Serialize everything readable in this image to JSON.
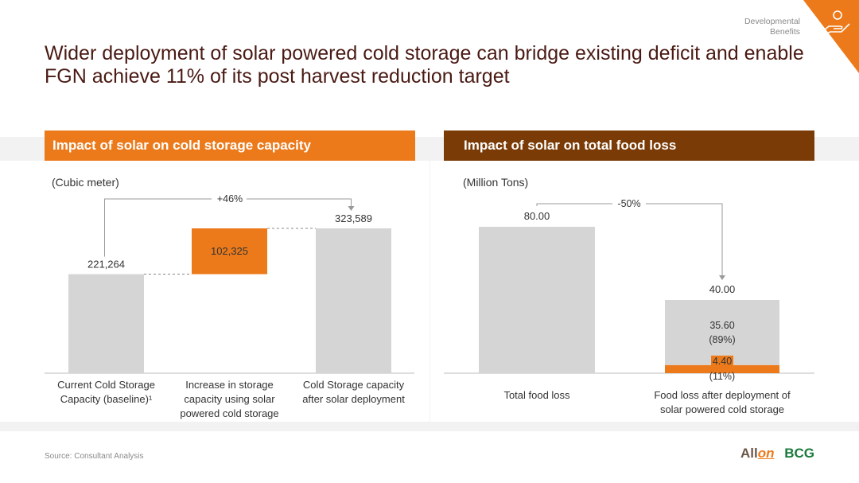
{
  "header": {
    "corner_line1": "Developmental",
    "corner_line2": "Benefits",
    "title": "Wider deployment of solar powered cold storage can bridge existing deficit and enable FGN achieve 11% of its post harvest reduction target"
  },
  "colors": {
    "accent_orange": "#ec7a1b",
    "dark_brown": "#7a3b06",
    "bar_gray": "#d5d5d5",
    "title_color": "#4a1a14"
  },
  "icons": [
    "hand-coin-icon"
  ],
  "footer": {
    "source": "Source: Consultant Analysis",
    "logo_allon_a": "All",
    "logo_allon_b": "on",
    "logo_bcg": "BCG"
  },
  "chart_data": [
    {
      "type": "bar",
      "subtype": "waterfall",
      "title": "Impact of solar on cold storage capacity",
      "unit_label": "(Cubic meter)",
      "categories": [
        [
          "Current Cold Storage",
          "Capacity (baseline)¹"
        ],
        [
          "Increase in storage",
          "capacity using solar",
          "powered cold storage"
        ],
        [
          "Cold Storage capacity",
          "after solar deployment"
        ]
      ],
      "values": [
        221264,
        102325,
        323589
      ],
      "value_labels": [
        "221,264",
        "102,325",
        "323,589"
      ],
      "bar_roles": [
        "total",
        "increase",
        "total"
      ],
      "annotation": "+46%",
      "ylim": [
        0,
        323589
      ]
    },
    {
      "type": "bar",
      "subtype": "stacked",
      "title": "Impact of solar on total food loss",
      "unit_label": "(Million Tons)",
      "categories": [
        [
          "Total food loss"
        ],
        [
          "Food loss after deployment of",
          "solar powered cold storage"
        ]
      ],
      "totals": [
        80.0,
        40.0
      ],
      "total_labels": [
        "80.00",
        "40.00"
      ],
      "segments": {
        "main": [
          80.0,
          35.6
        ],
        "solar": [
          0,
          4.4
        ]
      },
      "segment_labels": {
        "main": [
          "",
          "35.60"
        ],
        "main_pct": [
          "",
          "(89%)"
        ],
        "solar": [
          "",
          "4.40"
        ],
        "solar_pct": [
          "",
          "(11%)"
        ]
      },
      "annotation": "-50%",
      "ylim": [
        0,
        80.0
      ]
    }
  ]
}
